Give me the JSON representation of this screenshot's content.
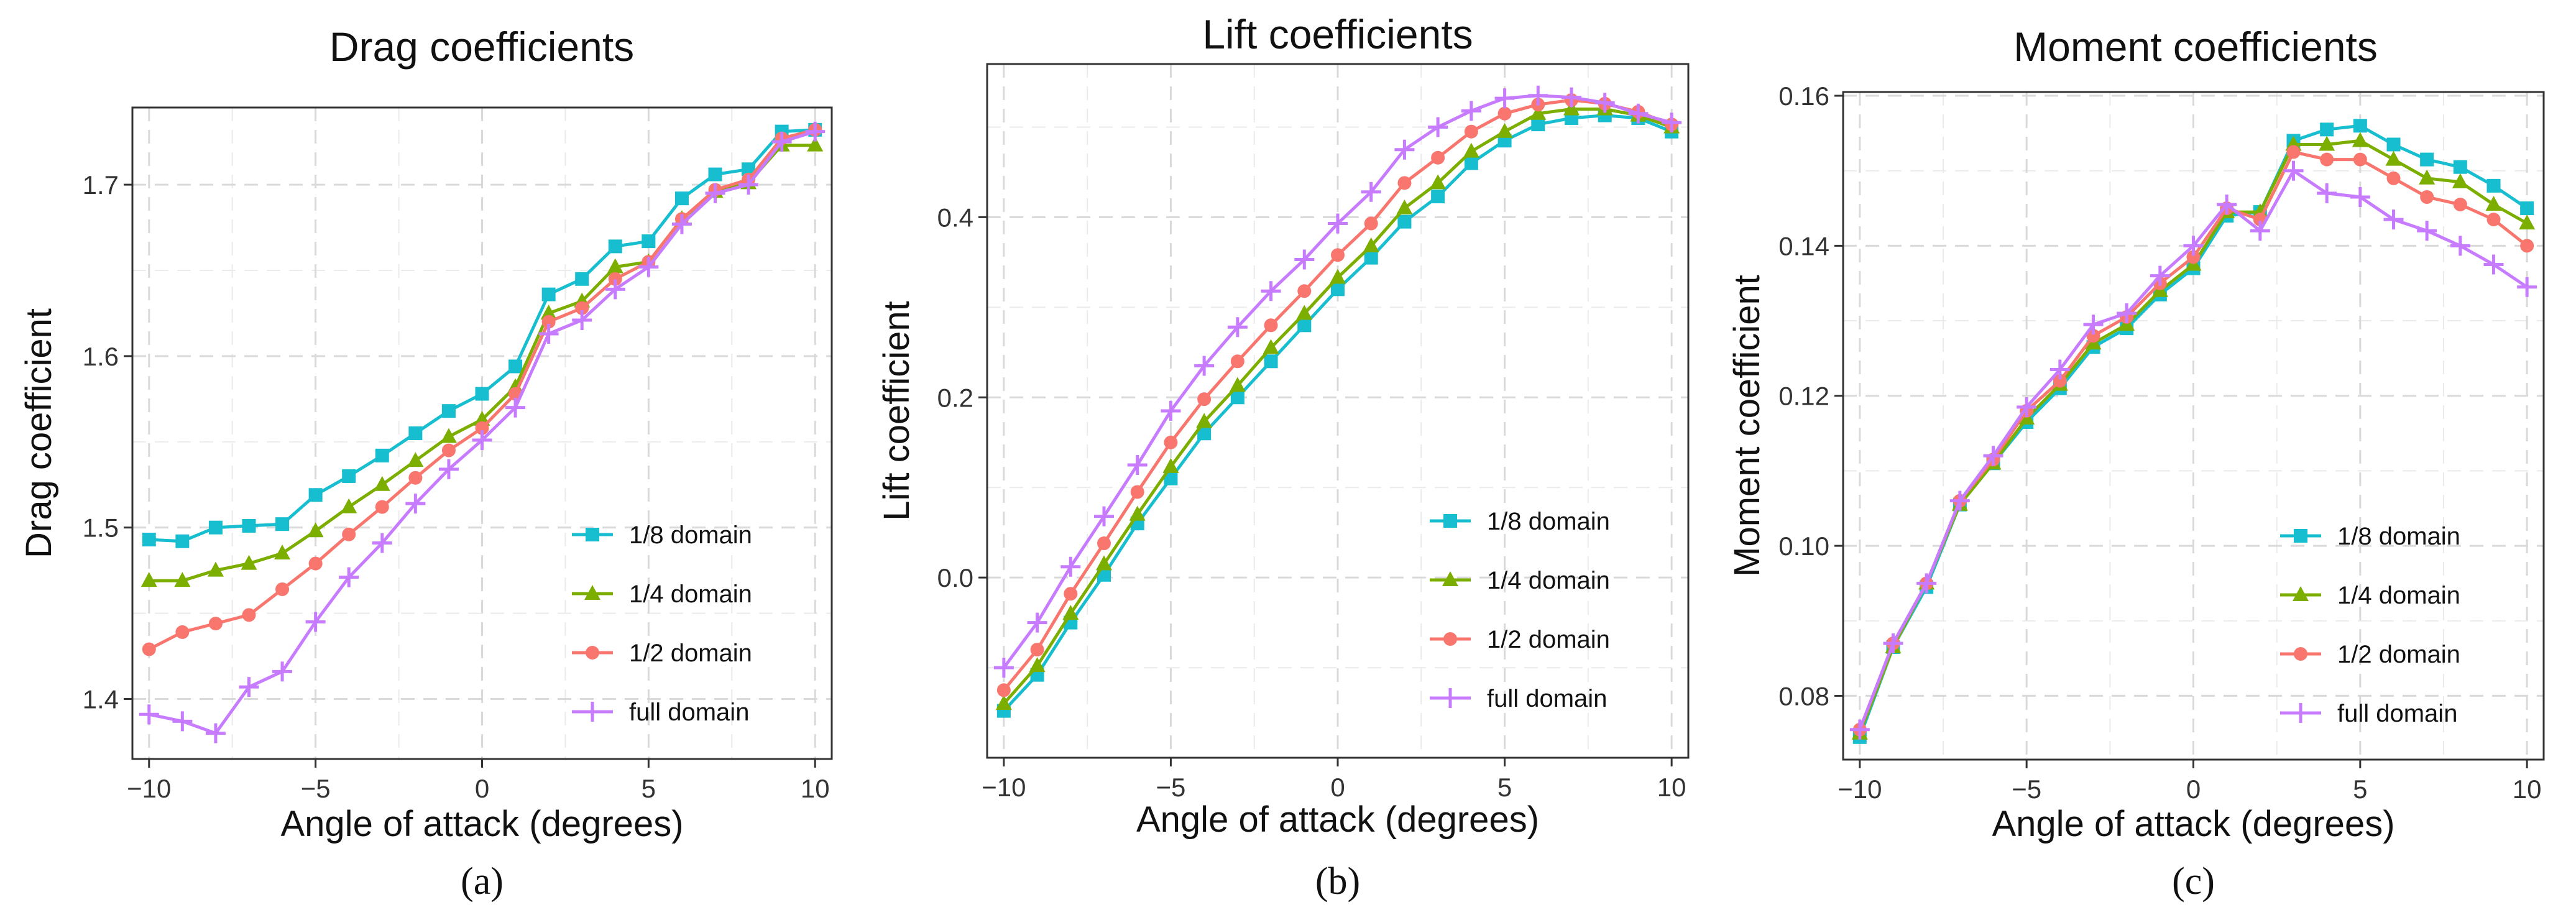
{
  "chart_data": [
    {
      "type": "line",
      "title": "Drag coefficients",
      "xlabel": "Angle of attack (degrees)",
      "ylabel": "Drag coefficient",
      "caption": "(a)",
      "xlim": [
        -10.5,
        10.5
      ],
      "ylim": [
        1.365,
        1.745
      ],
      "xticks": [
        -10,
        -5,
        0,
        5,
        10
      ],
      "xtick_labels": [
        "−10",
        "−5",
        "0",
        "5",
        "10"
      ],
      "yticks": [
        1.4,
        1.5,
        1.6,
        1.7
      ],
      "ytick_labels": [
        "1.4",
        "1.5",
        "1.6",
        "1.7"
      ],
      "grid": true,
      "legend_position": "bottom-right",
      "x": [
        -10,
        -9,
        -8,
        -7,
        -6,
        -5,
        -4,
        -3,
        -2,
        -1,
        0,
        1,
        2,
        3,
        4,
        5,
        6,
        7,
        8,
        9,
        10
      ],
      "series": [
        {
          "name": "1/8 domain",
          "color": "#17BECF",
          "marker": "square",
          "values": [
            1.493,
            1.492,
            1.5,
            1.501,
            1.502,
            1.519,
            1.53,
            1.542,
            1.555,
            1.568,
            1.578,
            1.594,
            1.636,
            1.645,
            1.664,
            1.667,
            1.692,
            1.706,
            1.709,
            1.731,
            1.732
          ]
        },
        {
          "name": "1/4 domain",
          "color": "#7CAE00",
          "marker": "triangle",
          "values": [
            1.469,
            1.469,
            1.475,
            1.479,
            1.485,
            1.498,
            1.512,
            1.525,
            1.539,
            1.553,
            1.563,
            1.582,
            1.625,
            1.632,
            1.652,
            1.655,
            1.68,
            1.696,
            1.701,
            1.723,
            1.723
          ]
        },
        {
          "name": "1/2 domain",
          "color": "#F8766D",
          "marker": "circle",
          "values": [
            1.429,
            1.439,
            1.444,
            1.449,
            1.464,
            1.479,
            1.496,
            1.512,
            1.529,
            1.545,
            1.558,
            1.578,
            1.62,
            1.628,
            1.645,
            1.655,
            1.68,
            1.697,
            1.703,
            1.727,
            1.732
          ]
        },
        {
          "name": "full domain",
          "color": "#C77CFF",
          "marker": "plus",
          "values": [
            1.391,
            1.387,
            1.38,
            1.407,
            1.416,
            1.445,
            1.471,
            1.491,
            1.514,
            1.534,
            1.551,
            1.57,
            1.613,
            1.621,
            1.639,
            1.652,
            1.677,
            1.695,
            1.7,
            1.725,
            1.731
          ]
        }
      ]
    },
    {
      "type": "line",
      "title": "Lift coefficients",
      "xlabel": "Angle of attack (degrees)",
      "ylabel": "Lift coefficient",
      "caption": "(b)",
      "xlim": [
        -10.5,
        10.5
      ],
      "ylim": [
        -0.2,
        0.57
      ],
      "xticks": [
        -10,
        -5,
        0,
        5,
        10
      ],
      "xtick_labels": [
        "−10",
        "−5",
        "0",
        "5",
        "10"
      ],
      "yticks": [
        0.0,
        0.2,
        0.4
      ],
      "ytick_labels": [
        "0.0",
        "0.2",
        "0.4"
      ],
      "grid": true,
      "legend_position": "bottom-right",
      "x": [
        -10,
        -9,
        -8,
        -7,
        -6,
        -5,
        -4,
        -3,
        -2,
        -1,
        0,
        1,
        2,
        3,
        4,
        5,
        6,
        7,
        8,
        9,
        10
      ],
      "series": [
        {
          "name": "1/8 domain",
          "color": "#17BECF",
          "marker": "square",
          "values": [
            -0.148,
            -0.108,
            -0.05,
            0.003,
            0.06,
            0.11,
            0.16,
            0.2,
            0.24,
            0.28,
            0.32,
            0.355,
            0.395,
            0.423,
            0.46,
            0.485,
            0.503,
            0.51,
            0.513,
            0.51,
            0.495
          ]
        },
        {
          "name": "1/4 domain",
          "color": "#7CAE00",
          "marker": "triangle",
          "values": [
            -0.14,
            -0.098,
            -0.04,
            0.015,
            0.07,
            0.123,
            0.173,
            0.213,
            0.255,
            0.293,
            0.333,
            0.368,
            0.41,
            0.438,
            0.473,
            0.495,
            0.515,
            0.52,
            0.52,
            0.513,
            0.5
          ]
        },
        {
          "name": "1/2 domain",
          "color": "#F8766D",
          "marker": "circle",
          "values": [
            -0.125,
            -0.08,
            -0.018,
            0.038,
            0.095,
            0.15,
            0.198,
            0.24,
            0.28,
            0.318,
            0.358,
            0.393,
            0.438,
            0.466,
            0.495,
            0.515,
            0.525,
            0.53,
            0.526,
            0.517,
            0.503
          ]
        },
        {
          "name": "full domain",
          "color": "#C77CFF",
          "marker": "plus",
          "values": [
            -0.1,
            -0.05,
            0.012,
            0.068,
            0.125,
            0.185,
            0.235,
            0.278,
            0.318,
            0.353,
            0.393,
            0.428,
            0.475,
            0.5,
            0.518,
            0.532,
            0.535,
            0.533,
            0.527,
            0.515,
            0.505
          ]
        }
      ]
    },
    {
      "type": "line",
      "title": "Moment coefficients",
      "xlabel": "Angle of attack (degrees)",
      "ylabel": "Moment coefficient",
      "caption": "(c)",
      "xlim": [
        -10.5,
        10.5
      ],
      "ylim": [
        0.0715,
        0.1605
      ],
      "xticks": [
        -10,
        -5,
        0,
        5,
        10
      ],
      "xtick_labels": [
        "−10",
        "−5",
        "0",
        "5",
        "10"
      ],
      "yticks": [
        0.08,
        0.1,
        0.12,
        0.14,
        0.16
      ],
      "ytick_labels": [
        "0.08",
        "0.10",
        "0.12",
        "0.14",
        "0.16"
      ],
      "grid": true,
      "legend_position": "bottom-right",
      "x": [
        -10,
        -9,
        -8,
        -7,
        -6,
        -5,
        -4,
        -3,
        -2,
        -1,
        0,
        1,
        2,
        3,
        4,
        5,
        6,
        7,
        8,
        9,
        10
      ],
      "series": [
        {
          "name": "1/8 domain",
          "color": "#17BECF",
          "marker": "square",
          "values": [
            0.0745,
            0.0865,
            0.0945,
            0.1055,
            0.111,
            0.1165,
            0.121,
            0.1265,
            0.129,
            0.1335,
            0.137,
            0.144,
            0.1445,
            0.154,
            0.1555,
            0.156,
            0.1535,
            0.1515,
            0.1505,
            0.148,
            0.145
          ]
        },
        {
          "name": "1/4 domain",
          "color": "#7CAE00",
          "marker": "triangle",
          "values": [
            0.075,
            0.0865,
            0.095,
            0.1055,
            0.111,
            0.117,
            0.1215,
            0.127,
            0.1295,
            0.134,
            0.1375,
            0.1445,
            0.1445,
            0.1535,
            0.1535,
            0.154,
            0.1515,
            0.149,
            0.1485,
            0.1455,
            0.143
          ]
        },
        {
          "name": "1/2 domain",
          "color": "#F8766D",
          "marker": "circle",
          "values": [
            0.0755,
            0.087,
            0.095,
            0.106,
            0.1115,
            0.118,
            0.122,
            0.128,
            0.1305,
            0.135,
            0.1385,
            0.145,
            0.1435,
            0.1525,
            0.1515,
            0.1515,
            0.149,
            0.1465,
            0.1455,
            0.1435,
            0.14
          ]
        },
        {
          "name": "full domain",
          "color": "#C77CFF",
          "marker": "plus",
          "values": [
            0.0755,
            0.087,
            0.095,
            0.106,
            0.112,
            0.1185,
            0.1235,
            0.1295,
            0.131,
            0.136,
            0.14,
            0.1455,
            0.142,
            0.15,
            0.147,
            0.1465,
            0.1435,
            0.142,
            0.14,
            0.1375,
            0.1345
          ]
        }
      ]
    }
  ]
}
